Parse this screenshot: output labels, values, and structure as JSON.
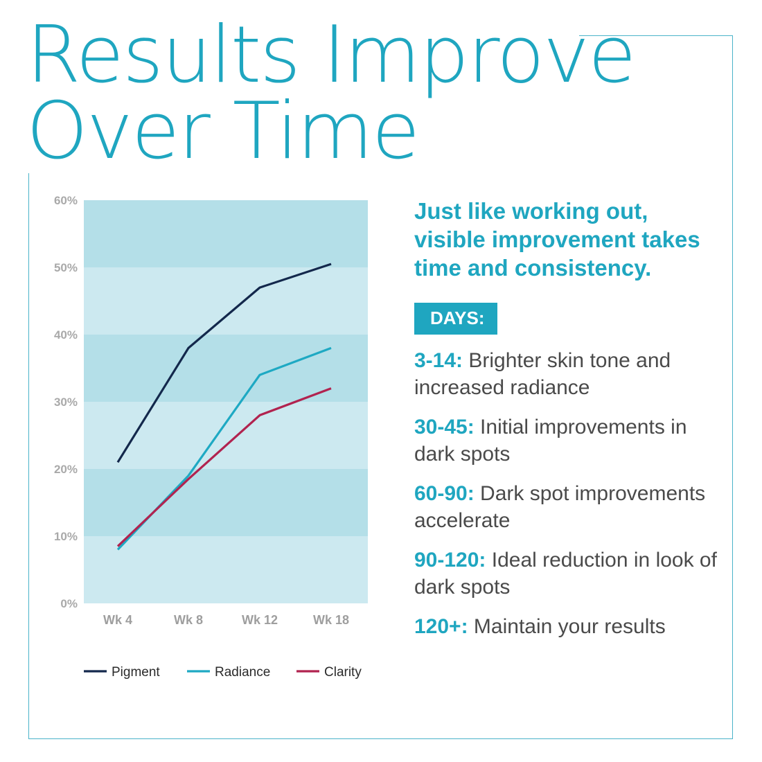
{
  "title_line1": "Results Improve",
  "title_line2": "Over Time",
  "tagline": "Just like working out, visible improvement takes time and consistency.",
  "days_label": "DAYS:",
  "timeline": [
    {
      "range": "3-14:",
      "text": "Brighter skin tone and increased radiance"
    },
    {
      "range": "30-45:",
      "text": "Initial improvements in dark spots"
    },
    {
      "range": "60-90:",
      "text": "Dark spot improvements accelerate"
    },
    {
      "range": "90-120:",
      "text": "Ideal reduction in look of dark spots"
    },
    {
      "range": "120+:",
      "text": "Maintain your results"
    }
  ],
  "colors": {
    "accent": "#1fa6c0",
    "pigment": "#13284c",
    "radiance": "#1ea9c3",
    "clarity": "#b1234f",
    "band_dark": "#b4dfe8",
    "band_light": "#cce9f0"
  },
  "chart_data": {
    "type": "line",
    "categories": [
      "Wk 4",
      "Wk 8",
      "Wk 12",
      "Wk 18"
    ],
    "ylim": [
      0,
      60
    ],
    "yticks": [
      "0%",
      "10%",
      "20%",
      "30%",
      "40%",
      "50%",
      "60%"
    ],
    "grid": "alternating horizontal bands",
    "legend": "bottom",
    "series": [
      {
        "name": "Pigment",
        "color": "#13284c",
        "values": [
          21,
          38,
          47,
          50.5
        ]
      },
      {
        "name": "Radiance",
        "color": "#1ea9c3",
        "values": [
          8,
          19,
          34,
          38
        ]
      },
      {
        "name": "Clarity",
        "color": "#b1234f",
        "values": [
          8.5,
          18.5,
          28,
          32
        ]
      }
    ]
  }
}
